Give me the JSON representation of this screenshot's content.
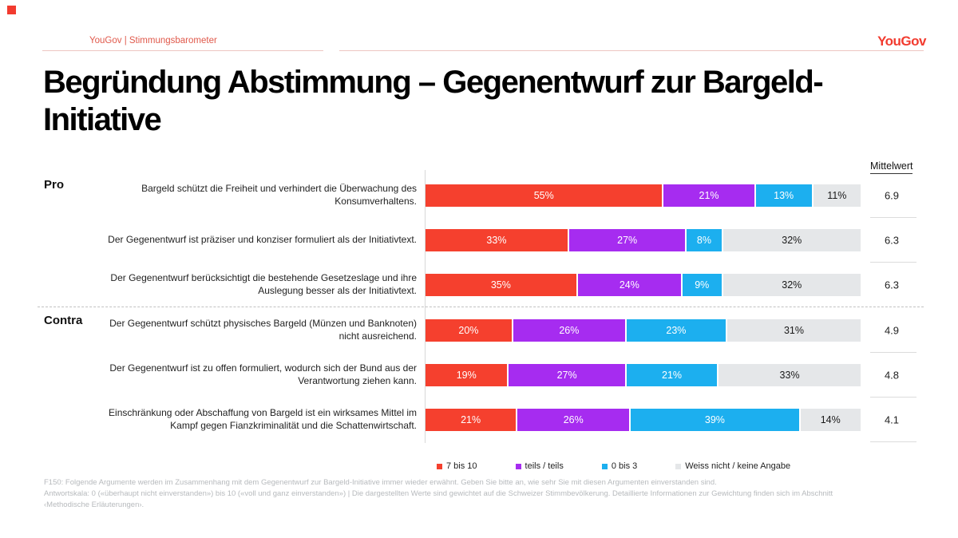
{
  "header": {
    "breadcrumb": "YouGov | Stimmungsbarometer",
    "logo_text": "YouGov"
  },
  "title": "Begründung Abstimmung – Gegenentwurf zur Bargeld-Initiative",
  "columns": {
    "mean_header": "Mittelwert"
  },
  "chart_data": {
    "type": "bar",
    "orientation": "horizontal",
    "stacked": true,
    "unit": "%",
    "xlim": [
      0,
      100
    ],
    "legend_position": "bottom",
    "series": [
      {
        "name": "7 bis 10",
        "color": "#F5402E",
        "text_color": "#ffffff"
      },
      {
        "name": "teils / teils",
        "color": "#A62CF0",
        "text_color": "#ffffff"
      },
      {
        "name": "0 bis 3",
        "color": "#1CAFEF",
        "text_color": "#ffffff"
      },
      {
        "name": "Weiss nicht / keine Angabe",
        "color": "#E5E7E9",
        "text_color": "#1a1a1a"
      }
    ],
    "groups": [
      {
        "section": "Pro",
        "rows": [
          {
            "label": "Bargeld schützt die Freiheit und verhindert die Überwachung des Konsumverhaltens.",
            "values": [
              55,
              21,
              13,
              11
            ],
            "mean": "6.9"
          },
          {
            "label": "Der Gegenentwurf ist präziser und konziser formuliert als der Initiativtext.",
            "values": [
              33,
              27,
              8,
              32
            ],
            "mean": "6.3"
          },
          {
            "label": "Der Gegenentwurf berücksichtigt die bestehende Gesetzeslage und ihre Auslegung besser als der Initiativtext.",
            "values": [
              35,
              24,
              9,
              32
            ],
            "mean": "6.3"
          }
        ]
      },
      {
        "section": "Contra",
        "rows": [
          {
            "label": "Der Gegenentwurf schützt physisches Bargeld (Münzen und Banknoten) nicht ausreichend.",
            "values": [
              20,
              26,
              23,
              31
            ],
            "mean": "4.9"
          },
          {
            "label": "Der Gegenentwurf ist zu offen formuliert, wodurch sich der Bund aus der Verantwortung ziehen kann.",
            "values": [
              19,
              27,
              21,
              33
            ],
            "mean": "4.8"
          },
          {
            "label": "Einschränkung oder Abschaffung von Bargeld ist ein wirksames Mittel im Kampf gegen Fianzkriminalität und die Schattenwirtschaft.",
            "values": [
              21,
              26,
              39,
              14
            ],
            "mean": "4.1"
          }
        ]
      }
    ]
  },
  "footnote": {
    "lines": [
      "F150: Folgende Argumente werden im Zusammenhang mit dem Gegenentwurf zur Bargeld-Initiative immer wieder erwähnt. Geben Sie bitte an, wie sehr Sie mit diesen Argumenten einverstanden sind.",
      "Antwortskala: 0 («überhaupt nicht einverstanden») bis 10 («voll und ganz einverstanden») | Die dargestellten Werte sind gewichtet auf die Schweizer Stimmbevölkerung. Detaillierte Informationen zur Gewichtung finden sich im Abschnitt",
      "‹Methodische Erläuterungen›."
    ]
  }
}
